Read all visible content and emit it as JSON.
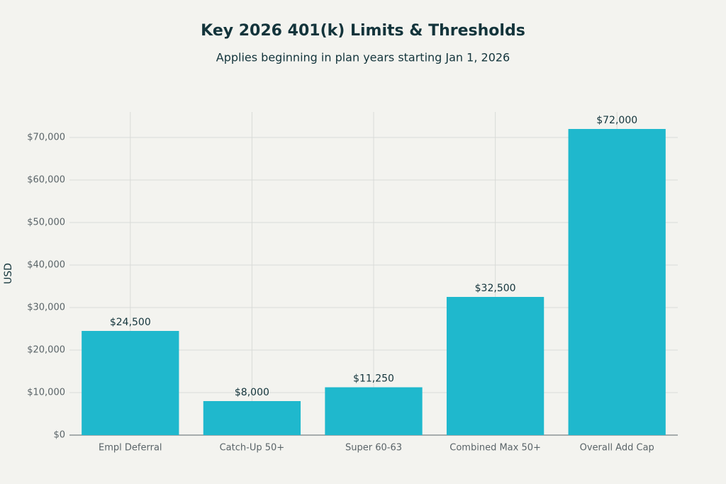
{
  "chart_data": {
    "type": "bar",
    "title": "Key 2026 401(k) Limits & Thresholds",
    "subtitle": "Applies beginning in plan years starting Jan 1, 2026",
    "y_label": "USD",
    "categories": [
      "Empl Deferral",
      "Catch-Up 50+",
      "Super 60-63",
      "Combined Max 50+",
      "Overall Add Cap"
    ],
    "values": [
      24500,
      8000,
      11250,
      32500,
      72000
    ],
    "value_labels": [
      "$24,500",
      "$8,000",
      "$11,250",
      "$32,500",
      "$72,000"
    ],
    "color": "#1fb8cd",
    "ylim": [
      0,
      76000
    ],
    "yticks": [
      {
        "value": 0,
        "label": "$0"
      },
      {
        "value": 10000,
        "label": "$10,000"
      },
      {
        "value": 20000,
        "label": "$20,000"
      },
      {
        "value": 30000,
        "label": "$30,000"
      },
      {
        "value": 40000,
        "label": "$40,000"
      },
      {
        "value": 50000,
        "label": "$50,000"
      },
      {
        "value": 60000,
        "label": "$60,000"
      },
      {
        "value": 70000,
        "label": "$70,000"
      }
    ],
    "grid": true
  }
}
